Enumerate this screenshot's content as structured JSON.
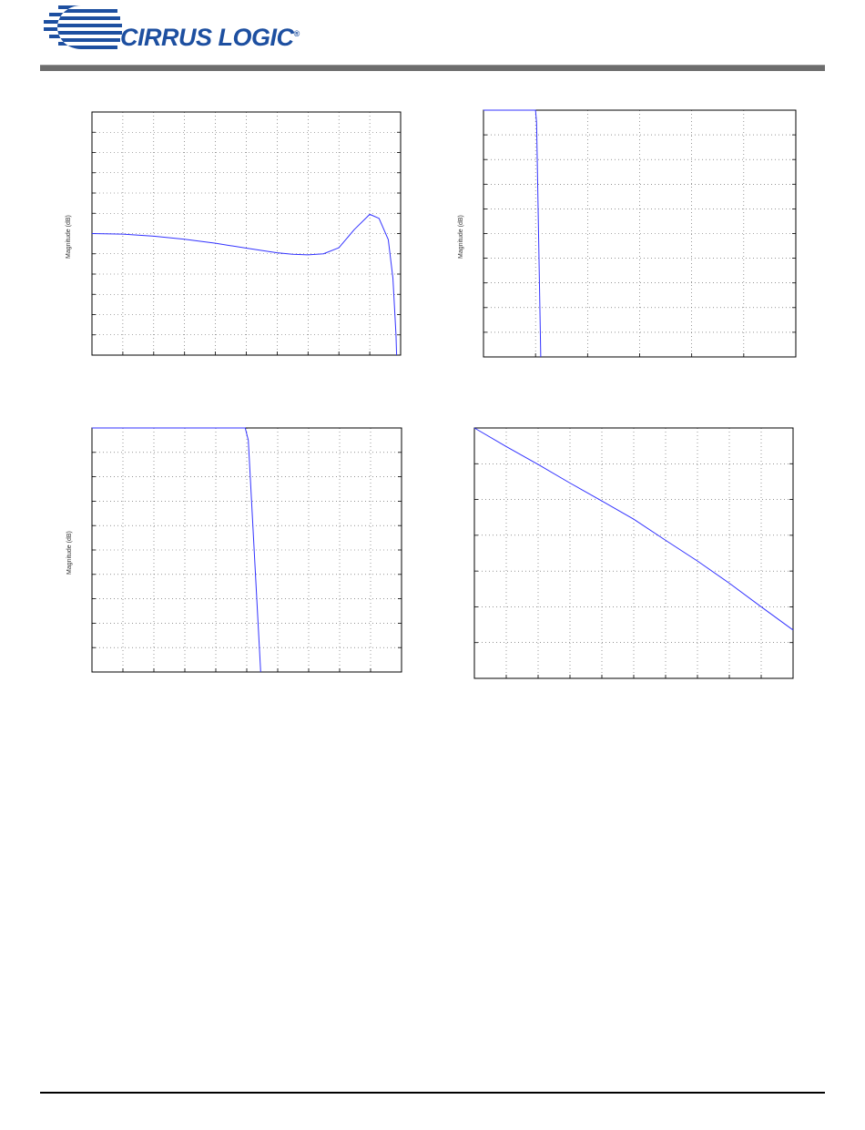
{
  "header": {
    "brand": "CIRRUS LOGIC",
    "registered": "®"
  },
  "colors": {
    "brand": "#1d4fa0",
    "curve": "#3333ff",
    "grid": "#555555"
  },
  "chart_data": [
    {
      "type": "line",
      "ylabel": "Magnitude (dB)",
      "grid": true,
      "x_divisions": 10,
      "y_divisions": 12,
      "xlim": [
        0,
        10
      ],
      "ylim": [
        0,
        12
      ],
      "series": [
        {
          "x": [
            0,
            1,
            2,
            3,
            4,
            5,
            6,
            6.5,
            7,
            7.5,
            8,
            8.5,
            9,
            9.3,
            9.6,
            9.75,
            9.85,
            9.87
          ],
          "y": [
            6,
            5.97,
            5.87,
            5.72,
            5.52,
            5.28,
            5.05,
            4.98,
            4.95,
            5.0,
            5.3,
            6.2,
            6.95,
            6.75,
            5.7,
            3.8,
            1,
            0
          ]
        }
      ]
    },
    {
      "type": "line",
      "ylabel": "Magnitude (dB)",
      "grid": true,
      "x_divisions": 6,
      "y_divisions": 10,
      "xlim": [
        0,
        6
      ],
      "ylim": [
        0,
        10
      ],
      "series": [
        {
          "x": [
            0,
            1,
            1.02,
            1.1
          ],
          "y": [
            10,
            10,
            9.5,
            0
          ]
        }
      ]
    },
    {
      "type": "line",
      "ylabel": "Magnitude (dB)",
      "grid": true,
      "x_divisions": 10,
      "y_divisions": 10,
      "xlim": [
        0,
        10
      ],
      "ylim": [
        0,
        10
      ],
      "series": [
        {
          "x": [
            0,
            4.95,
            5.05,
            5.45
          ],
          "y": [
            10,
            10,
            9.5,
            0
          ]
        }
      ]
    },
    {
      "type": "line",
      "ylabel": "",
      "grid": true,
      "x_divisions": 10,
      "y_divisions": 7,
      "xlim": [
        0,
        10
      ],
      "ylim": [
        0,
        7
      ],
      "series": [
        {
          "x": [
            0,
            1,
            2,
            3,
            4,
            5,
            6,
            7,
            8,
            9,
            10
          ],
          "y": [
            7,
            6.48,
            5.98,
            5.46,
            4.96,
            4.45,
            3.86,
            3.28,
            2.66,
            2.0,
            1.35
          ]
        }
      ]
    }
  ]
}
